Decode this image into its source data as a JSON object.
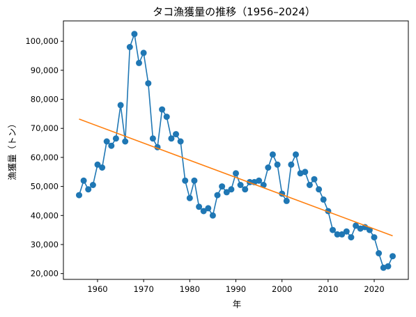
{
  "chart_data": {
    "type": "line",
    "title": "タコ漁獲量の推移（1956–2024）",
    "xlabel": "年",
    "ylabel": "漁獲量（トン）",
    "xlim": [
      1952.6,
      2027.4
    ],
    "ylim": [
      18000,
      107000
    ],
    "xticks": [
      1960,
      1970,
      1980,
      1990,
      2000,
      2010,
      2020
    ],
    "yticks": [
      20000,
      30000,
      40000,
      50000,
      60000,
      70000,
      80000,
      90000,
      100000
    ],
    "xtick_labels": [
      "1960",
      "1970",
      "1980",
      "1990",
      "2000",
      "2010",
      "2020"
    ],
    "ytick_labels": [
      "20,000",
      "30,000",
      "40,000",
      "50,000",
      "60,000",
      "70,000",
      "80,000",
      "90,000",
      "100,000"
    ],
    "grid": false,
    "series": [
      {
        "kind": "line-markers",
        "color": "#1f77b4",
        "x": [
          1956,
          1957,
          1958,
          1959,
          1960,
          1961,
          1962,
          1963,
          1964,
          1965,
          1966,
          1967,
          1968,
          1969,
          1970,
          1971,
          1972,
          1973,
          1974,
          1975,
          1976,
          1977,
          1978,
          1979,
          1980,
          1981,
          1982,
          1983,
          1984,
          1985,
          1986,
          1987,
          1988,
          1989,
          1990,
          1991,
          1992,
          1993,
          1994,
          1995,
          1996,
          1997,
          1998,
          1999,
          2000,
          2001,
          2002,
          2003,
          2004,
          2005,
          2006,
          2007,
          2008,
          2009,
          2010,
          2011,
          2012,
          2013,
          2014,
          2015,
          2016,
          2017,
          2018,
          2019,
          2020,
          2021,
          2022,
          2023,
          2024
        ],
        "y": [
          47000,
          52000,
          49000,
          50500,
          57500,
          56500,
          65500,
          64000,
          66500,
          78000,
          65500,
          98000,
          102500,
          92500,
          96000,
          85500,
          66500,
          63500,
          76500,
          74000,
          66500,
          68000,
          65500,
          52000,
          46000,
          52000,
          43000,
          41500,
          42500,
          40000,
          47000,
          50000,
          48000,
          49000,
          54500,
          50500,
          49000,
          51500,
          51500,
          52000,
          50500,
          56500,
          61000,
          57500,
          47500,
          45000,
          57500,
          61000,
          54500,
          55000,
          50500,
          52500,
          49000,
          45500,
          41500,
          35000,
          33500,
          33500,
          34500,
          32500,
          36500,
          35500,
          36000,
          35000,
          32500,
          27000,
          22000,
          22500,
          26000
        ]
      },
      {
        "kind": "trend-line",
        "color": "#ff7f0e",
        "x": [
          1956,
          2024
        ],
        "y": [
          73200,
          33000
        ]
      }
    ]
  }
}
